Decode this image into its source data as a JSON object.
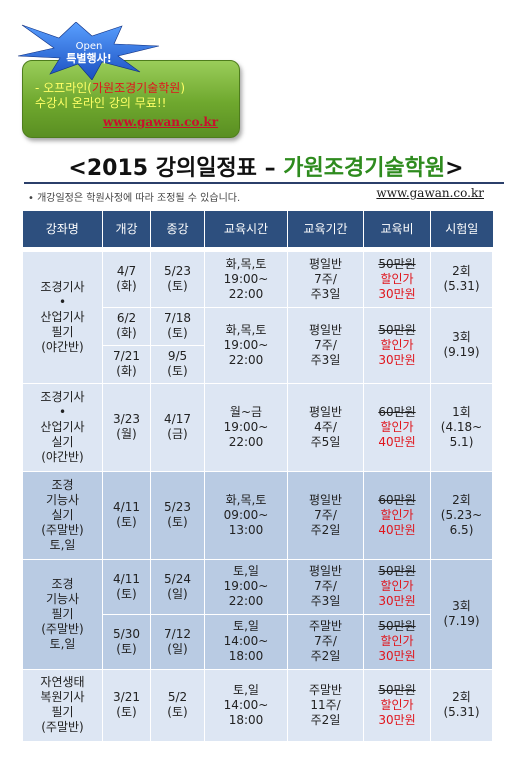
{
  "promo": {
    "burst_line1": "Open",
    "burst_line2": "특별행사!",
    "line1_prefix": "- 오프라인(",
    "line1_highlight": "가원조경기술학원",
    "line1_suffix": ")",
    "line2": "수강시 온라인 강의 무료!!",
    "url": "www.gawan.co.kr"
  },
  "title": {
    "prefix": "<2015 강의일정표 – ",
    "accent": "가원조경기술학원",
    "suffix": ">"
  },
  "note": "• 개강일정은 학원사정에 따라 조정될 수 있습니다.",
  "note_url": "www.gawan.co.kr",
  "table": {
    "headers": [
      "강좌명",
      "개강",
      "종강",
      "교육시간",
      "교육기간",
      "교육비",
      "시험일"
    ],
    "groups": [
      {
        "course": [
          "조경기사",
          "•",
          "산업기사",
          "필기",
          "(야간반)"
        ],
        "exam_by_row": [
          [
            "2회",
            "(5.31)"
          ],
          [
            "3회",
            "(9.19)"
          ]
        ],
        "rows": [
          {
            "start": [
              "4/7",
              "(화)"
            ],
            "end": [
              "5/23",
              "(토)"
            ],
            "time": [
              "화,목,토",
              "19:00~",
              "22:00"
            ],
            "period": [
              "평일반",
              "7주/",
              "주3일"
            ],
            "fee_old": "50만원",
            "fee_new": [
              "할인가",
              "30만원"
            ]
          },
          {
            "start": [
              "6/2",
              "(화)"
            ],
            "end": [
              "7/18",
              "(토)"
            ],
            "time": [
              "화,목,토",
              "19:00~",
              "22:00"
            ],
            "period": [
              "평일반",
              "7주/",
              "주3일"
            ],
            "fee_old": "50만원",
            "fee_new": [
              "할인가",
              "30만원"
            ]
          },
          {
            "start": [
              "7/21",
              "(화)"
            ],
            "end": [
              "9/5",
              "(토)"
            ]
          }
        ]
      },
      {
        "course": [
          "조경기사",
          "•",
          "산업기사",
          "실기",
          "(야간반)"
        ],
        "exam": [
          "1회",
          "(4.18~",
          "5.1)"
        ],
        "rows": [
          {
            "start": [
              "3/23",
              "(월)"
            ],
            "end": [
              "4/17",
              "(금)"
            ],
            "time": [
              "월~금",
              "19:00~",
              "22:00"
            ],
            "period": [
              "평일반",
              "4주/",
              "주5일"
            ],
            "fee_old": "60만원",
            "fee_new": [
              "할인가",
              "40만원"
            ]
          }
        ]
      },
      {
        "course": [
          "조경",
          "기능사",
          "실기",
          "(주말반)",
          "토,일"
        ],
        "exam": [
          "2회",
          "(5.23~",
          "6.5)"
        ],
        "rows": [
          {
            "start": [
              "4/11",
              "(토)"
            ],
            "end": [
              "5/23",
              "(토)"
            ],
            "time": [
              "화,목,토",
              "09:00~",
              "13:00"
            ],
            "period": [
              "평일반",
              "7주/",
              "주2일"
            ],
            "fee_old": "60만원",
            "fee_new": [
              "할인가",
              "40만원"
            ]
          }
        ]
      },
      {
        "course": [
          "조경",
          "기능사",
          "필기",
          "(주말반)",
          "토,일"
        ],
        "exam": [
          "3회",
          "(7.19)"
        ],
        "rows": [
          {
            "start": [
              "4/11",
              "(토)"
            ],
            "end": [
              "5/24",
              "(일)"
            ],
            "time": [
              "토,일",
              "19:00~",
              "22:00"
            ],
            "period": [
              "평일반",
              "7주/",
              "주3일"
            ],
            "fee_old": "50만원",
            "fee_new": [
              "할인가",
              "30만원"
            ]
          },
          {
            "start": [
              "5/30",
              "(토)"
            ],
            "end": [
              "7/12",
              "(일)"
            ],
            "time": [
              "토,일",
              "14:00~",
              "18:00"
            ],
            "period": [
              "주말반",
              "7주/",
              "주2일"
            ],
            "fee_old": "50만원",
            "fee_new": [
              "할인가",
              "30만원"
            ]
          }
        ]
      },
      {
        "course": [
          "자연생태",
          "복원기사",
          "필기",
          "(주말반)"
        ],
        "exam": [
          "2회",
          "(5.31)"
        ],
        "rows": [
          {
            "start": [
              "3/21",
              "(토)"
            ],
            "end": [
              "5/2",
              "(토)"
            ],
            "time": [
              "토,일",
              "14:00~",
              "18:00"
            ],
            "period": [
              "주말반",
              "11주/",
              "주2일"
            ],
            "fee_old": "50만원",
            "fee_new": [
              "할인가",
              "30만원"
            ]
          }
        ]
      }
    ]
  },
  "colors": {
    "header_bg": "#2d4f7e",
    "row_light": "#dde6f3",
    "row_mid": "#b9cbe3",
    "discount_red": "#e0151c",
    "title_accent": "#2e8b1e",
    "promo_green": "#6fa82e"
  }
}
